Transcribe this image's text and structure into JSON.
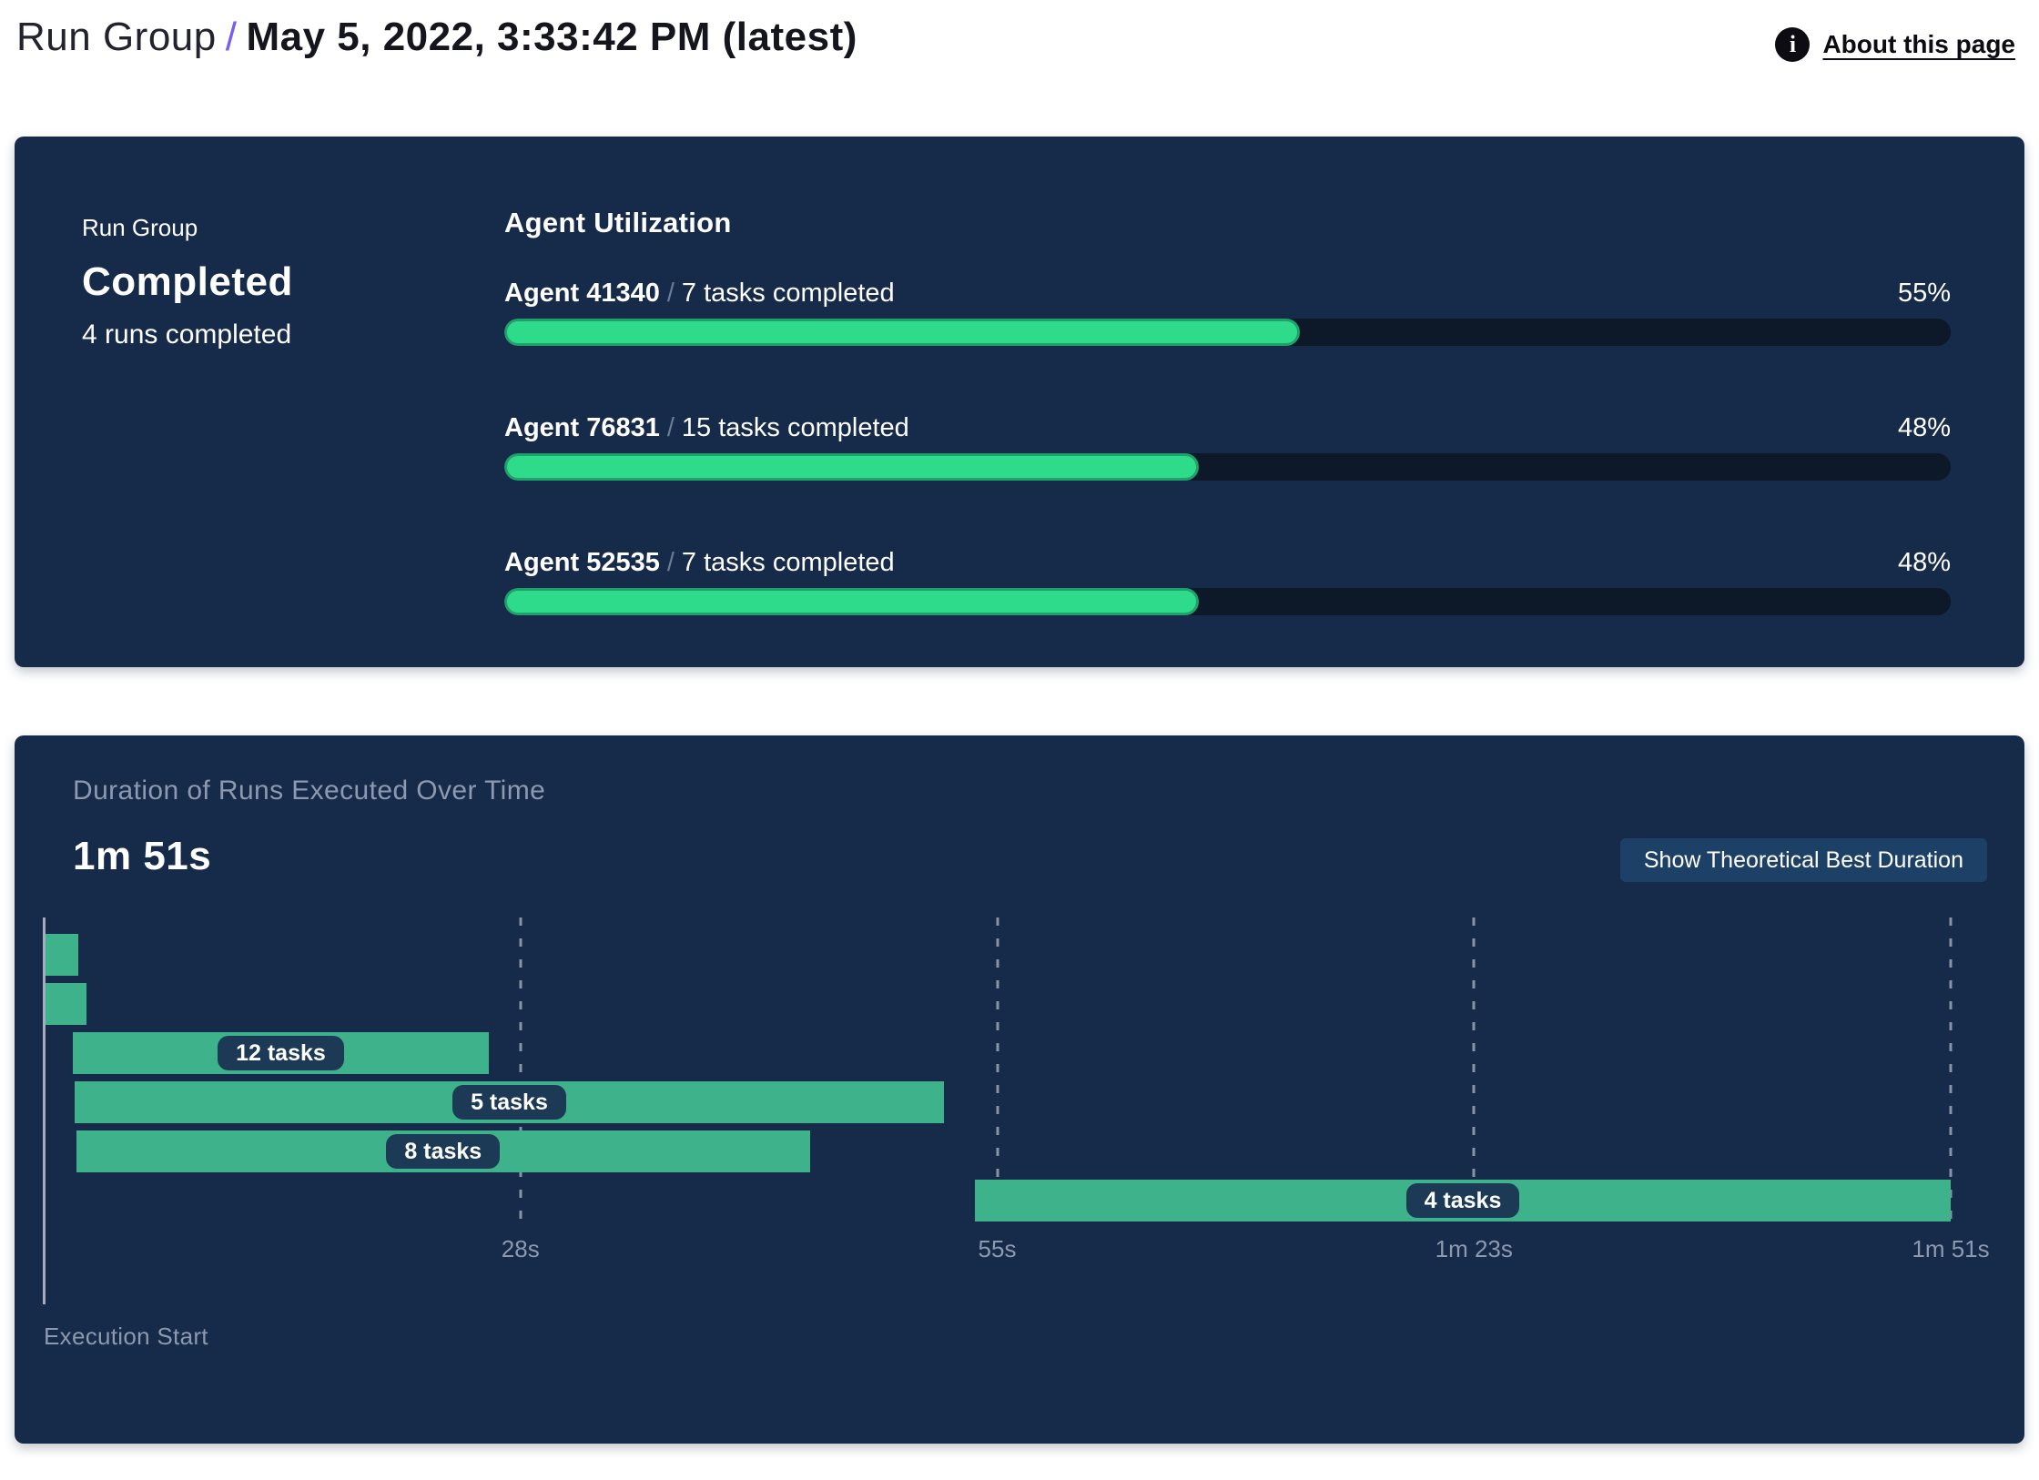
{
  "page": {
    "breadcrumb_section": "Run Group",
    "breadcrumb_separator": "/",
    "title": "May 5, 2022, 3:33:42 PM (latest)",
    "about_link": "About this page",
    "info_icon_glyph": "i"
  },
  "summary_panel": {
    "label": "Run Group",
    "status": "Completed",
    "runs_completed": "4 runs completed",
    "utilization": {
      "heading": "Agent Utilization",
      "separator": "/"
    }
  },
  "duration_panel": {
    "title": "Duration of Runs Executed Over Time",
    "total_duration": "1m 51s",
    "button_label": "Show Theoretical Best Duration",
    "axis_label": "Execution Start"
  },
  "chart_data": [
    {
      "type": "bar",
      "title": "Agent Utilization",
      "categories": [
        "Agent 41340",
        "Agent 76831",
        "Agent 52535"
      ],
      "annotations": [
        "7 tasks completed",
        "15 tasks completed",
        "7 tasks completed"
      ],
      "values": [
        55,
        48,
        48
      ],
      "value_labels": [
        "55%",
        "48%",
        "48%"
      ],
      "xlim": [
        0,
        100
      ]
    },
    {
      "type": "gantt",
      "title": "Duration of Runs Executed Over Time",
      "total_duration_label": "1m 51s",
      "time_range_seconds": [
        0,
        111
      ],
      "x_ticks": [
        {
          "pct": 25,
          "label": "28s"
        },
        {
          "pct": 50,
          "label": "55s"
        },
        {
          "pct": 75,
          "label": "1m 23s"
        },
        {
          "pct": 100,
          "label": "1m 51s"
        }
      ],
      "xlabel": "Execution Start",
      "runs": [
        {
          "start_s": 0.1,
          "end_s": 2.0,
          "tasks_label": ""
        },
        {
          "start_s": 0.1,
          "end_s": 2.5,
          "tasks_label": ""
        },
        {
          "start_s": 1.7,
          "end_s": 25.9,
          "tasks_label": "12 tasks"
        },
        {
          "start_s": 1.8,
          "end_s": 52.4,
          "tasks_label": "5 tasks"
        },
        {
          "start_s": 1.9,
          "end_s": 44.6,
          "tasks_label": "8 tasks"
        },
        {
          "start_s": 54.2,
          "end_s": 111.0,
          "tasks_label": "4 tasks"
        }
      ]
    }
  ],
  "colors": {
    "panel_bg": "#162A4A",
    "progress_track": "#0D1928",
    "progress_fill": "#2DDB8B",
    "progress_fill_border": "#21A06B",
    "gantt_bar": "#3EB28A",
    "task_pill_bg": "#1C3A55",
    "button_bg": "#1D4166",
    "breadcrumb_accent": "#7A5CF5",
    "muted_text": "#8C99AE"
  }
}
